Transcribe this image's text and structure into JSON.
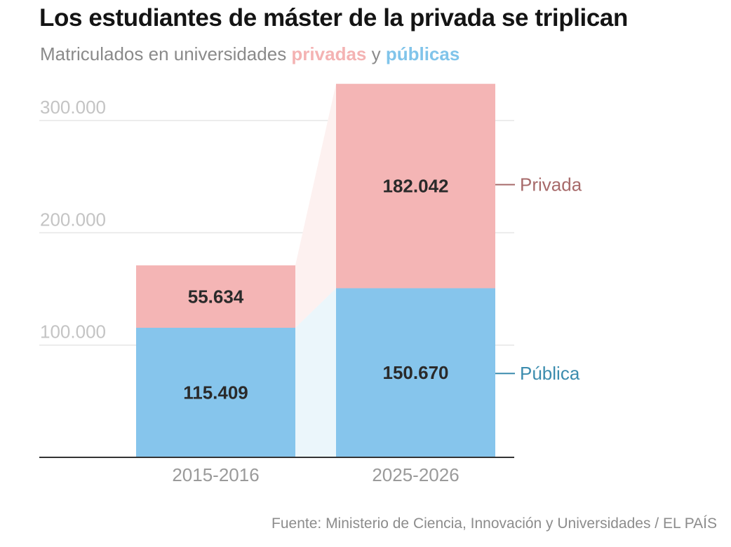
{
  "title": "Los estudiantes de máster de la privada se triplican",
  "subtitle": {
    "prefix": "Matriculados en universidades ",
    "privadas": "privadas",
    "conj": " y ",
    "publicas": "públicas"
  },
  "source": "Fuente: Ministerio de Ciencia, Innovación y Universidades / EL PAÍS",
  "colors": {
    "privada": "#f4b5b5",
    "publica": "#86c5ec",
    "privada_label": "#a76a6a",
    "publica_label": "#3b8cae",
    "privada_subtitle": "#f4b3b3",
    "publica_subtitle": "#80c4ea",
    "connector_privada": "#fdf1f0",
    "connector_publica": "#ebf6fb",
    "grid": "#e6e6e6",
    "axis": "#333333",
    "tick_text": "#c4c4c4",
    "category_text": "#9a9a9a",
    "value_text": "#2a2a2a"
  },
  "chart_data": {
    "type": "bar",
    "stacked": true,
    "categories": [
      "2015-2016",
      "2025-2026"
    ],
    "series": [
      {
        "name": "Pública",
        "key": "publica",
        "values": [
          115409,
          150670
        ],
        "value_labels": [
          "115.409",
          "150.670"
        ]
      },
      {
        "name": "Privada",
        "key": "privada",
        "values": [
          55634,
          182042
        ],
        "value_labels": [
          "55.634",
          "182.042"
        ]
      }
    ],
    "yticks": [
      100000,
      200000,
      300000
    ],
    "ytick_labels": [
      "100.000",
      "200.000",
      "300.000"
    ],
    "ylim": [
      0,
      335000
    ],
    "grid": true,
    "legend": "direct labels right of last bar"
  }
}
